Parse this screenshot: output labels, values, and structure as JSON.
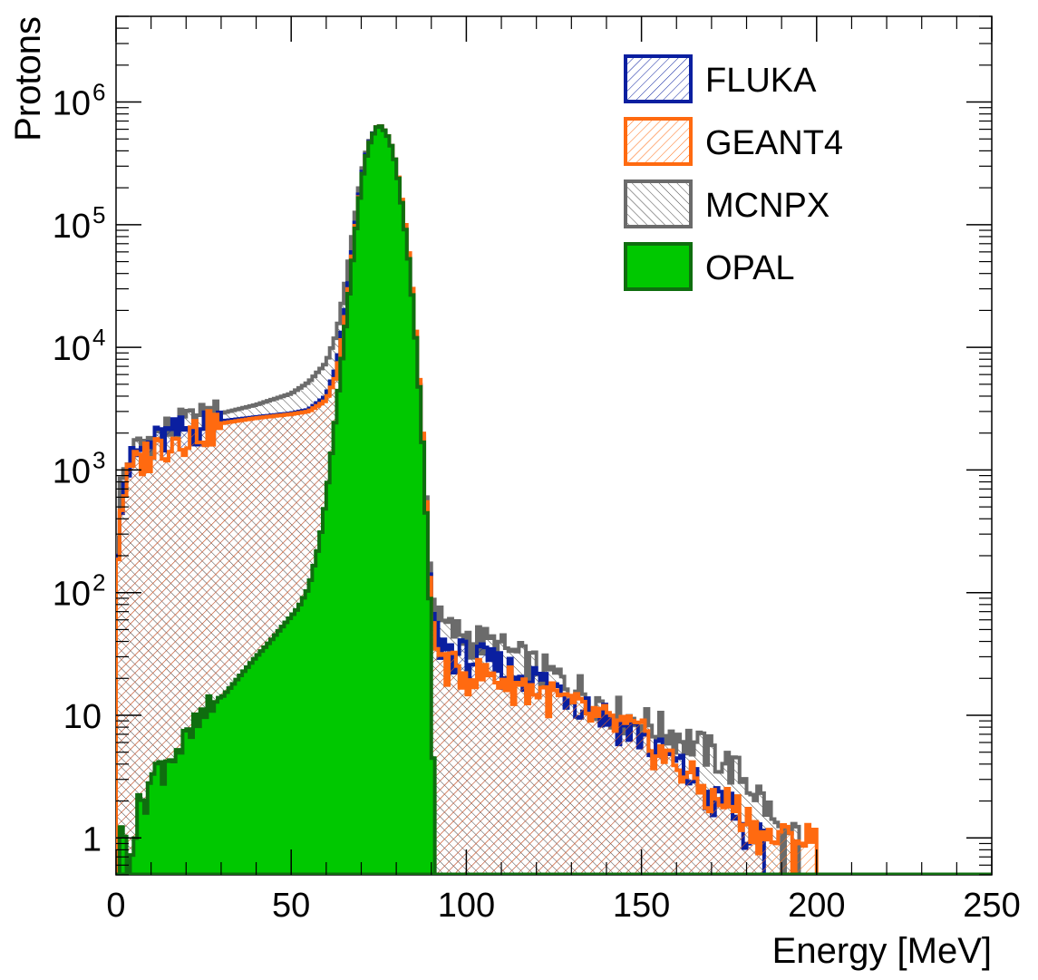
{
  "chart_data": {
    "type": "histogram",
    "xlabel": "Energy [MeV]",
    "ylabel": "Protons",
    "xlim": [
      0,
      250
    ],
    "ylim": [
      0.5,
      5000000
    ],
    "yscale": "log",
    "legend_position": "top-right",
    "x_ticks": [
      0,
      50,
      100,
      150,
      200,
      250
    ],
    "x_tick_labels": [
      "0",
      "50",
      "100",
      "150",
      "200",
      "250"
    ],
    "y_ticks": [
      {
        "value": 1,
        "base": "1",
        "exp": ""
      },
      {
        "value": 10,
        "base": "10",
        "exp": ""
      },
      {
        "value": 100,
        "base": "10",
        "exp": "2"
      },
      {
        "value": 1000,
        "base": "10",
        "exp": "3"
      },
      {
        "value": 10000,
        "base": "10",
        "exp": "4"
      },
      {
        "value": 100000,
        "base": "10",
        "exp": "5"
      },
      {
        "value": 1000000,
        "base": "10",
        "exp": "6"
      }
    ],
    "series": [
      {
        "name": "MCNPX",
        "color": "#6b6b6b",
        "fill": "hatch-gray",
        "points": [
          [
            0,
            220
          ],
          [
            1,
            600
          ],
          [
            2,
            900
          ],
          [
            4,
            1250
          ],
          [
            6,
            1500
          ],
          [
            10,
            1850
          ],
          [
            15,
            2150
          ],
          [
            20,
            2400
          ],
          [
            30,
            2900
          ],
          [
            40,
            3400
          ],
          [
            50,
            4200
          ],
          [
            55,
            5200
          ],
          [
            60,
            7500
          ],
          [
            63,
            13000
          ],
          [
            66,
            40000
          ],
          [
            68,
            100000
          ],
          [
            70,
            250000
          ],
          [
            72,
            450000
          ],
          [
            74,
            600000
          ],
          [
            75,
            650000
          ],
          [
            76,
            620000
          ],
          [
            78,
            500000
          ],
          [
            80,
            300000
          ],
          [
            82,
            120000
          ],
          [
            84,
            40000
          ],
          [
            86,
            8000
          ],
          [
            88,
            1200
          ],
          [
            89,
            300
          ],
          [
            90,
            100
          ],
          [
            92,
            60
          ],
          [
            95,
            50
          ],
          [
            100,
            45
          ],
          [
            105,
            40
          ],
          [
            110,
            35
          ],
          [
            115,
            30
          ],
          [
            120,
            25
          ],
          [
            125,
            21
          ],
          [
            130,
            18
          ],
          [
            135,
            15
          ],
          [
            140,
            12
          ],
          [
            145,
            10
          ],
          [
            150,
            9
          ],
          [
            155,
            8
          ],
          [
            160,
            7
          ],
          [
            165,
            6
          ],
          [
            170,
            5
          ],
          [
            175,
            4
          ],
          [
            180,
            3
          ],
          [
            185,
            2
          ],
          [
            190,
            1
          ],
          [
            195,
            1
          ]
        ]
      },
      {
        "name": "FLUKA",
        "color": "#0a1fa0",
        "fill": "hatch-blue",
        "points": [
          [
            0,
            180
          ],
          [
            1,
            500
          ],
          [
            2,
            800
          ],
          [
            4,
            1100
          ],
          [
            6,
            1350
          ],
          [
            10,
            1650
          ],
          [
            15,
            1900
          ],
          [
            20,
            2150
          ],
          [
            30,
            2500
          ],
          [
            40,
            2700
          ],
          [
            50,
            2900
          ],
          [
            55,
            3100
          ],
          [
            60,
            4000
          ],
          [
            63,
            7000
          ],
          [
            66,
            25000
          ],
          [
            68,
            80000
          ],
          [
            70,
            230000
          ],
          [
            72,
            440000
          ],
          [
            74,
            600000
          ],
          [
            75,
            650000
          ],
          [
            76,
            620000
          ],
          [
            78,
            500000
          ],
          [
            80,
            300000
          ],
          [
            82,
            120000
          ],
          [
            84,
            40000
          ],
          [
            86,
            8000
          ],
          [
            88,
            1100
          ],
          [
            89,
            250
          ],
          [
            90,
            80
          ],
          [
            92,
            40
          ],
          [
            95,
            35
          ],
          [
            100,
            30
          ],
          [
            105,
            28
          ],
          [
            110,
            25
          ],
          [
            115,
            22
          ],
          [
            120,
            20
          ],
          [
            125,
            17
          ],
          [
            130,
            15
          ],
          [
            135,
            12
          ],
          [
            140,
            10
          ],
          [
            145,
            8
          ],
          [
            150,
            7
          ],
          [
            155,
            5
          ],
          [
            160,
            4
          ],
          [
            165,
            3
          ],
          [
            170,
            2
          ],
          [
            175,
            2
          ],
          [
            180,
            1
          ],
          [
            185,
            1
          ]
        ]
      },
      {
        "name": "GEANT4",
        "color": "#ff6a10",
        "fill": "hatch-orange",
        "points": [
          [
            0,
            130
          ],
          [
            1,
            380
          ],
          [
            2,
            650
          ],
          [
            4,
            950
          ],
          [
            6,
            1150
          ],
          [
            10,
            1450
          ],
          [
            15,
            1750
          ],
          [
            20,
            2000
          ],
          [
            30,
            2400
          ],
          [
            40,
            2650
          ],
          [
            50,
            2850
          ],
          [
            55,
            3000
          ],
          [
            60,
            3700
          ],
          [
            63,
            6000
          ],
          [
            66,
            22000
          ],
          [
            68,
            75000
          ],
          [
            70,
            220000
          ],
          [
            72,
            430000
          ],
          [
            74,
            600000
          ],
          [
            75,
            650000
          ],
          [
            76,
            620000
          ],
          [
            78,
            500000
          ],
          [
            80,
            300000
          ],
          [
            82,
            130000
          ],
          [
            84,
            45000
          ],
          [
            86,
            9000
          ],
          [
            88,
            1200
          ],
          [
            89,
            250
          ],
          [
            90,
            70
          ],
          [
            92,
            30
          ],
          [
            95,
            25
          ],
          [
            100,
            22
          ],
          [
            105,
            22
          ],
          [
            110,
            20
          ],
          [
            115,
            18
          ],
          [
            120,
            16
          ],
          [
            125,
            14
          ],
          [
            130,
            12
          ],
          [
            135,
            10
          ],
          [
            140,
            9
          ],
          [
            145,
            8
          ],
          [
            150,
            7
          ],
          [
            155,
            5
          ],
          [
            160,
            4
          ],
          [
            165,
            3
          ],
          [
            170,
            2
          ],
          [
            175,
            2
          ],
          [
            180,
            1.5
          ],
          [
            185,
            1
          ],
          [
            190,
            1
          ],
          [
            195,
            1
          ],
          [
            200,
            1
          ]
        ]
      },
      {
        "name": "OPAL",
        "color": "#0f6e0f",
        "fill": "#00c800",
        "points": [
          [
            0,
            0.6
          ],
          [
            1,
            1
          ],
          [
            3,
            1
          ],
          [
            5,
            1
          ],
          [
            7,
            2
          ],
          [
            10,
            3
          ],
          [
            13,
            4
          ],
          [
            16,
            5
          ],
          [
            20,
            6
          ],
          [
            24,
            9
          ],
          [
            28,
            12
          ],
          [
            32,
            16
          ],
          [
            36,
            22
          ],
          [
            40,
            30
          ],
          [
            44,
            40
          ],
          [
            48,
            55
          ],
          [
            52,
            75
          ],
          [
            55,
            110
          ],
          [
            58,
            250
          ],
          [
            60,
            600
          ],
          [
            62,
            1800
          ],
          [
            64,
            6000
          ],
          [
            66,
            20000
          ],
          [
            68,
            70000
          ],
          [
            70,
            220000
          ],
          [
            72,
            430000
          ],
          [
            74,
            600000
          ],
          [
            75,
            650000
          ],
          [
            76,
            620000
          ],
          [
            78,
            500000
          ],
          [
            80,
            300000
          ],
          [
            82,
            120000
          ],
          [
            84,
            40000
          ],
          [
            86,
            8000
          ],
          [
            88,
            1000
          ],
          [
            89,
            200
          ],
          [
            90,
            40
          ],
          [
            91,
            0.5
          ]
        ]
      }
    ],
    "legend": [
      {
        "name": "FLUKA",
        "color": "#0a1fa0",
        "fill": "hatch-blue"
      },
      {
        "name": "GEANT4",
        "color": "#ff6a10",
        "fill": "hatch-orange"
      },
      {
        "name": "MCNPX",
        "color": "#6b6b6b",
        "fill": "hatch-gray"
      },
      {
        "name": "OPAL",
        "color": "#0f6e0f",
        "fill": "#00c800"
      }
    ]
  }
}
